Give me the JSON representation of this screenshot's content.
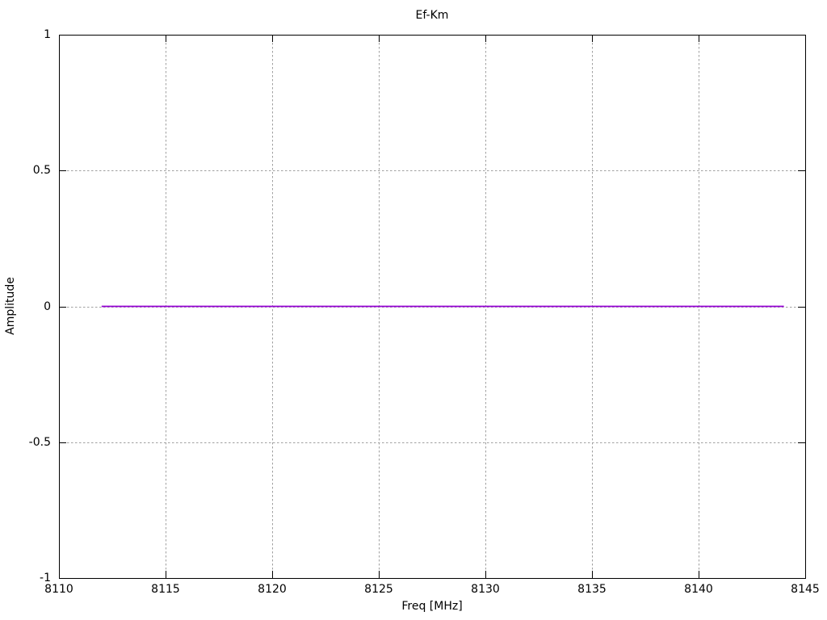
{
  "page": {
    "background_color": "#ffffff",
    "text_color": "#000000"
  },
  "chart_data": {
    "type": "line",
    "title": "Ef-Km",
    "xlabel": "Freq [MHz]",
    "ylabel": "Amplitude",
    "xlim": [
      8110,
      8145
    ],
    "ylim": [
      -1,
      1
    ],
    "xticks": [
      8110,
      8115,
      8120,
      8125,
      8130,
      8135,
      8140,
      8145
    ],
    "yticks": [
      -1,
      -0.5,
      0,
      0.5,
      1
    ],
    "grid": true,
    "legend": "none",
    "axis_color": "#000000",
    "grid_color": "#a0a0a0",
    "series": [
      {
        "name": "Ef-Km",
        "color": "#9400d3",
        "x": [
          8112,
          8144
        ],
        "y": [
          0,
          0
        ]
      }
    ]
  }
}
